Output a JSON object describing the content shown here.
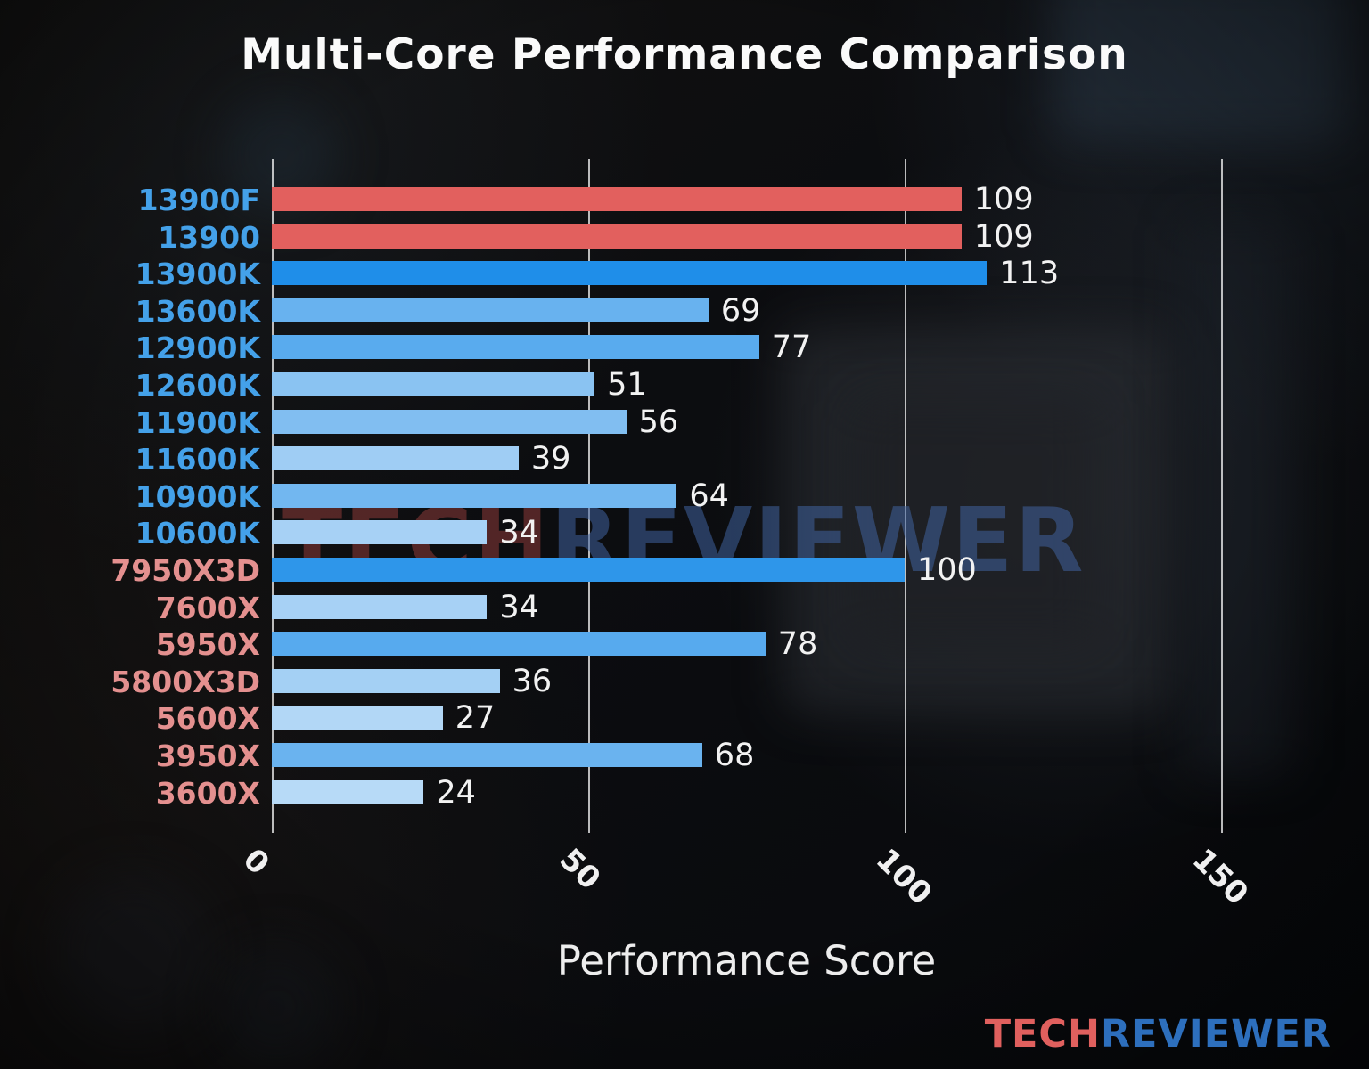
{
  "chart_data": {
    "type": "bar",
    "orientation": "horizontal",
    "title": "Multi-Core Performance Comparison",
    "xlabel": "Performance Score",
    "xlim": [
      0,
      157
    ],
    "xticks": [
      0,
      50,
      100,
      150
    ],
    "xtick_labels": [
      "0",
      "50",
      "100",
      "150"
    ],
    "grid": true,
    "legend": false,
    "bars": [
      {
        "label": "13900F",
        "value": 109,
        "bar_color": "#e2605e",
        "label_color": "#44a1e9"
      },
      {
        "label": "13900",
        "value": 109,
        "bar_color": "#e2605e",
        "label_color": "#44a1e9"
      },
      {
        "label": "13900K",
        "value": 113,
        "bar_color": "#1f8ee9",
        "label_color": "#44a1e9"
      },
      {
        "label": "13600K",
        "value": 69,
        "bar_color": "#68b2ef",
        "label_color": "#44a1e9"
      },
      {
        "label": "12900K",
        "value": 77,
        "bar_color": "#59abee",
        "label_color": "#44a1e9"
      },
      {
        "label": "12600K",
        "value": 51,
        "bar_color": "#8ac3f2",
        "label_color": "#44a1e9"
      },
      {
        "label": "11900K",
        "value": 56,
        "bar_color": "#81bef1",
        "label_color": "#44a1e9"
      },
      {
        "label": "11600K",
        "value": 39,
        "bar_color": "#9fcdf4",
        "label_color": "#44a1e9"
      },
      {
        "label": "10900K",
        "value": 64,
        "bar_color": "#72b7f0",
        "label_color": "#44a1e9"
      },
      {
        "label": "10600K",
        "value": 34,
        "bar_color": "#a7d1f5",
        "label_color": "#44a1e9"
      },
      {
        "label": "7950X3D",
        "value": 100,
        "bar_color": "#2e96ea",
        "label_color": "#e4908f"
      },
      {
        "label": "7600X",
        "value": 34,
        "bar_color": "#a7d1f5",
        "label_color": "#e4908f"
      },
      {
        "label": "5950X",
        "value": 78,
        "bar_color": "#57aaee",
        "label_color": "#e4908f"
      },
      {
        "label": "5800X3D",
        "value": 36,
        "bar_color": "#a4d0f4",
        "label_color": "#e4908f"
      },
      {
        "label": "5600X",
        "value": 27,
        "bar_color": "#b2d7f6",
        "label_color": "#e4908f"
      },
      {
        "label": "3950X",
        "value": 68,
        "bar_color": "#6ab3ef",
        "label_color": "#e4908f"
      },
      {
        "label": "3600X",
        "value": 24,
        "bar_color": "#b7daf7",
        "label_color": "#e4908f"
      }
    ]
  },
  "watermark": {
    "tech": "TECH",
    "reviewer": "REVIEWER"
  },
  "logo": {
    "tech": "TECH",
    "reviewer": "REVIEWER",
    "tech_color": "#e0605e",
    "reviewer_color": "#2d6fbd"
  }
}
